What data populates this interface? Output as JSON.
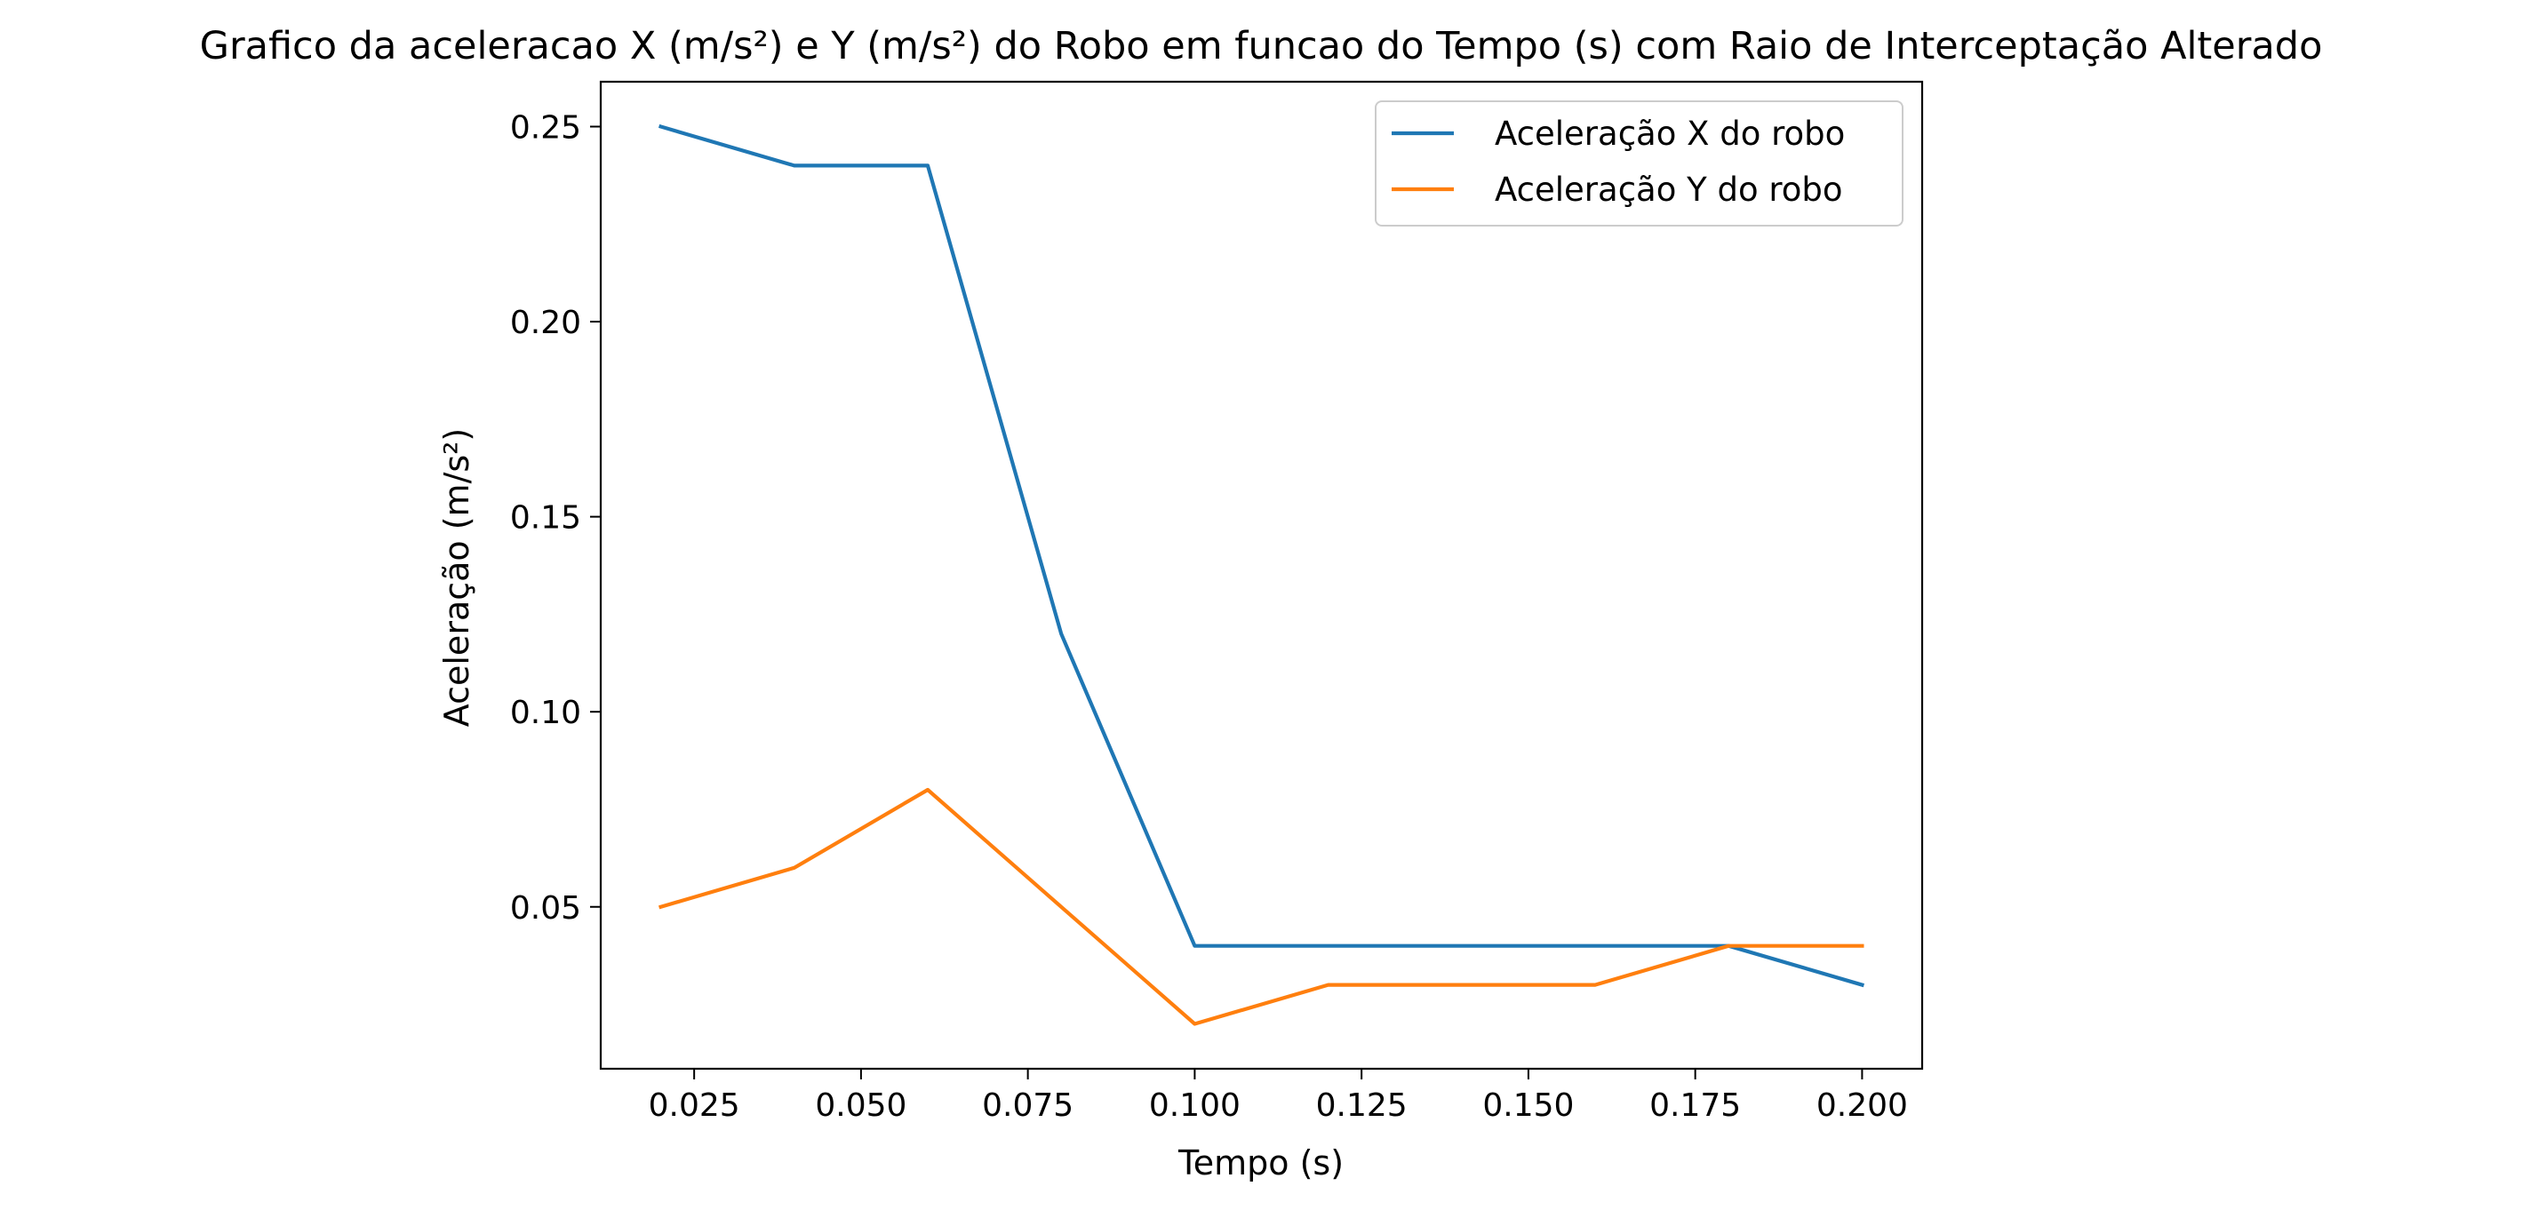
{
  "chart_data": {
    "type": "line",
    "title": "Grafico da aceleracao X (m/s²) e Y (m/s²) do Robo em funcao do Tempo (s) com Raio de Interceptação Alterado",
    "xlabel": "Tempo (s)",
    "ylabel": "Aceleração (m/s²)",
    "x": [
      0.02,
      0.04,
      0.06,
      0.08,
      0.1,
      0.12,
      0.14,
      0.16,
      0.18,
      0.2
    ],
    "series": [
      {
        "name": "Aceleração X do robo",
        "color": "#1f77b4",
        "values": [
          0.25,
          0.24,
          0.24,
          0.12,
          0.04,
          0.04,
          0.04,
          0.04,
          0.04,
          0.03
        ]
      },
      {
        "name": "Aceleração Y do robo",
        "color": "#ff7f0e",
        "values": [
          0.05,
          0.06,
          0.08,
          0.05,
          0.02,
          0.03,
          0.03,
          0.03,
          0.04,
          0.04
        ]
      }
    ],
    "xlim": [
      0.011,
      0.209
    ],
    "ylim": [
      0.0085,
      0.2615
    ],
    "xticks": [
      "0.025",
      "0.050",
      "0.075",
      "0.100",
      "0.125",
      "0.150",
      "0.175",
      "0.200"
    ],
    "yticks": [
      "0.05",
      "0.10",
      "0.15",
      "0.20",
      "0.25"
    ],
    "grid": false,
    "legend_position": "top-right"
  }
}
